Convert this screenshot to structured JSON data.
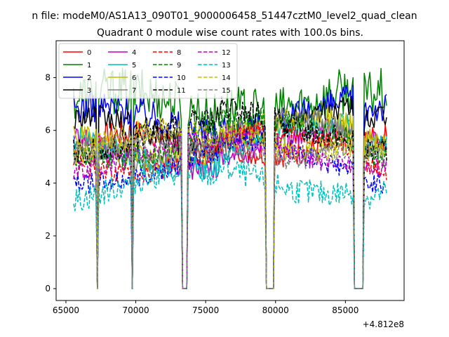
{
  "chart_data": {
    "type": "line",
    "suptitle": "n file: modeM0/AS1A13_090T01_9000006458_51447cztM0_level2_quad_clean",
    "title": "Quadrant 0 module wise count rates with 100.0s bins.",
    "xlabel": "",
    "ylabel": "",
    "x_offset_label": "+4.812e8",
    "xlim": [
      64300,
      89200
    ],
    "ylim": [
      -0.45,
      9.4
    ],
    "xticks": [
      65000,
      70000,
      75000,
      80000,
      85000
    ],
    "xtick_labels": [
      "65000",
      "70000",
      "75000",
      "80000",
      "85000"
    ],
    "yticks": [
      0,
      2,
      4,
      6,
      8
    ],
    "ytick_labels": [
      "0",
      "2",
      "4",
      "6",
      "8"
    ],
    "grid": false,
    "legend_placement": "upper-left",
    "legend_columns": 4,
    "x_range": [
      65550,
      87950
    ],
    "bin_seconds": 100,
    "gaps": [
      {
        "x0": 67200,
        "x1": 67300
      },
      {
        "x0": 69700,
        "x1": 69800
      },
      {
        "x0": 73300,
        "x1": 73700
      },
      {
        "x0": 79300,
        "x1": 79900
      },
      {
        "x0": 85600,
        "x1": 86300
      }
    ],
    "series": [
      {
        "name": "0",
        "color": "#ff0000",
        "dash": "solid",
        "level": 5.3,
        "amplitude": 0.5
      },
      {
        "name": "1",
        "color": "#008000",
        "dash": "solid",
        "level": 6.9,
        "amplitude": 0.9
      },
      {
        "name": "2",
        "color": "#0000ff",
        "dash": "solid",
        "level": 6.3,
        "amplitude": 0.6
      },
      {
        "name": "3",
        "color": "#000000",
        "dash": "solid",
        "level": 5.9,
        "amplitude": 0.5
      },
      {
        "name": "4",
        "color": "#bf00bf",
        "dash": "solid",
        "level": 5.1,
        "amplitude": 0.4
      },
      {
        "name": "5",
        "color": "#00bfbf",
        "dash": "solid",
        "level": 5.2,
        "amplitude": 0.5
      },
      {
        "name": "6",
        "color": "#bfbf00",
        "dash": "solid",
        "level": 5.5,
        "amplitude": 0.5
      },
      {
        "name": "7",
        "color": "#808080",
        "dash": "solid",
        "level": 5.4,
        "amplitude": 0.5
      },
      {
        "name": "8",
        "color": "#ff0000",
        "dash": "dashed",
        "level": 5.0,
        "amplitude": 0.4
      },
      {
        "name": "9",
        "color": "#008000",
        "dash": "dashed",
        "level": 5.5,
        "amplitude": 0.5
      },
      {
        "name": "10",
        "color": "#0000ff",
        "dash": "dashed",
        "level": 4.6,
        "amplitude": 0.4
      },
      {
        "name": "11",
        "color": "#000000",
        "dash": "dashed",
        "level": 5.8,
        "amplitude": 0.5
      },
      {
        "name": "12",
        "color": "#bf00bf",
        "dash": "dashed",
        "level": 5.0,
        "amplitude": 0.4
      },
      {
        "name": "13",
        "color": "#00bfbf",
        "dash": "dashed",
        "level": 3.8,
        "amplitude": 0.5
      },
      {
        "name": "14",
        "color": "#bfbf00",
        "dash": "dashed",
        "level": 5.4,
        "amplitude": 0.5
      },
      {
        "name": "15",
        "color": "#808080",
        "dash": "dashed",
        "level": 5.1,
        "amplitude": 0.4
      }
    ]
  }
}
